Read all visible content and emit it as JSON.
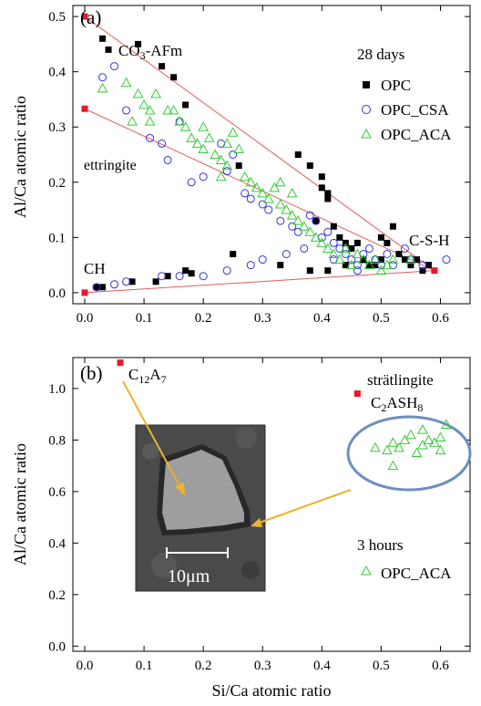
{
  "chart_data": [
    {
      "type": "scatter",
      "panel_label": "(a)",
      "xlabel": "",
      "ylabel": "Al/Ca atomic ratio",
      "xlim": [
        -0.02,
        0.65
      ],
      "ylim": [
        -0.02,
        0.52
      ],
      "x_ticks": [
        "0.0",
        "0.1",
        "0.2",
        "0.3",
        "0.4",
        "0.5",
        "0.6"
      ],
      "y_ticks": [
        "0.0",
        "0.1",
        "0.2",
        "0.3",
        "0.4",
        "0.5"
      ],
      "legend_title": "28 days",
      "legend_position": "top-right",
      "annotations": {
        "co3_afm": {
          "base": "CO",
          "sub": "3",
          "rest": "-AFm"
        },
        "ettringite": "ettringite",
        "csh": "C-S-H",
        "ch": "CH"
      },
      "reference_points": [
        [
          0.0,
          0.5
        ],
        [
          0.0,
          0.333
        ],
        [
          0.0,
          0.0
        ],
        [
          0.59,
          0.04
        ]
      ],
      "reference_lines": [
        {
          "from": [
            0.0,
            0.5
          ],
          "to": [
            0.59,
            0.04
          ]
        },
        {
          "from": [
            0.0,
            0.333
          ],
          "to": [
            0.59,
            0.04
          ]
        },
        {
          "from": [
            0.0,
            0.0
          ],
          "to": [
            0.59,
            0.04
          ]
        }
      ],
      "series": [
        {
          "name": "OPC",
          "marker": "square-filled",
          "color": "#000000",
          "points": [
            [
              0.03,
              0.46
            ],
            [
              0.04,
              0.44
            ],
            [
              0.09,
              0.45
            ],
            [
              0.13,
              0.41
            ],
            [
              0.15,
              0.39
            ],
            [
              0.17,
              0.34
            ],
            [
              0.26,
              0.23
            ],
            [
              0.36,
              0.25
            ],
            [
              0.38,
              0.23
            ],
            [
              0.4,
              0.21
            ],
            [
              0.4,
              0.19
            ],
            [
              0.41,
              0.18
            ],
            [
              0.41,
              0.17
            ],
            [
              0.39,
              0.13
            ],
            [
              0.42,
              0.12
            ],
            [
              0.43,
              0.1
            ],
            [
              0.44,
              0.09
            ],
            [
              0.45,
              0.08
            ],
            [
              0.46,
              0.09
            ],
            [
              0.5,
              0.1
            ],
            [
              0.51,
              0.09
            ],
            [
              0.53,
              0.07
            ],
            [
              0.54,
              0.06
            ],
            [
              0.55,
              0.05
            ],
            [
              0.57,
              0.04
            ],
            [
              0.52,
              0.12
            ],
            [
              0.47,
              0.06
            ],
            [
              0.49,
              0.05
            ],
            [
              0.02,
              0.01
            ],
            [
              0.03,
              0.01
            ],
            [
              0.08,
              0.02
            ],
            [
              0.12,
              0.02
            ],
            [
              0.14,
              0.03
            ],
            [
              0.17,
              0.04
            ],
            [
              0.18,
              0.035
            ],
            [
              0.25,
              0.07
            ],
            [
              0.33,
              0.05
            ],
            [
              0.38,
              0.04
            ],
            [
              0.41,
              0.04
            ],
            [
              0.44,
              0.05
            ],
            [
              0.48,
              0.05
            ],
            [
              0.5,
              0.06
            ],
            [
              0.56,
              0.06
            ],
            [
              0.58,
              0.05
            ]
          ]
        },
        {
          "name": "OPC_CSA",
          "marker": "circle-open",
          "color": "#3333dd",
          "points": [
            [
              0.03,
              0.39
            ],
            [
              0.05,
              0.41
            ],
            [
              0.07,
              0.33
            ],
            [
              0.11,
              0.28
            ],
            [
              0.13,
              0.27
            ],
            [
              0.14,
              0.24
            ],
            [
              0.16,
              0.31
            ],
            [
              0.2,
              0.21
            ],
            [
              0.23,
              0.27
            ],
            [
              0.24,
              0.22
            ],
            [
              0.28,
              0.17
            ],
            [
              0.3,
              0.16
            ],
            [
              0.31,
              0.15
            ],
            [
              0.33,
              0.13
            ],
            [
              0.35,
              0.12
            ],
            [
              0.36,
              0.11
            ],
            [
              0.38,
              0.14
            ],
            [
              0.39,
              0.13
            ],
            [
              0.4,
              0.1
            ],
            [
              0.41,
              0.11
            ],
            [
              0.42,
              0.09
            ],
            [
              0.43,
              0.08
            ],
            [
              0.44,
              0.07
            ],
            [
              0.45,
              0.06
            ],
            [
              0.46,
              0.05
            ],
            [
              0.47,
              0.07
            ],
            [
              0.48,
              0.08
            ],
            [
              0.49,
              0.06
            ],
            [
              0.5,
              0.05
            ],
            [
              0.51,
              0.07
            ],
            [
              0.52,
              0.05
            ],
            [
              0.55,
              0.06
            ],
            [
              0.57,
              0.05
            ],
            [
              0.61,
              0.06
            ],
            [
              0.02,
              0.01
            ],
            [
              0.05,
              0.015
            ],
            [
              0.07,
              0.02
            ],
            [
              0.13,
              0.03
            ],
            [
              0.16,
              0.03
            ],
            [
              0.2,
              0.03
            ],
            [
              0.24,
              0.04
            ],
            [
              0.28,
              0.05
            ],
            [
              0.3,
              0.06
            ],
            [
              0.34,
              0.07
            ],
            [
              0.37,
              0.08
            ],
            [
              0.42,
              0.06
            ],
            [
              0.46,
              0.04
            ],
            [
              0.54,
              0.08
            ],
            [
              0.25,
              0.25
            ],
            [
              0.27,
              0.18
            ],
            [
              0.18,
              0.2
            ]
          ]
        },
        {
          "name": "OPC_ACA",
          "marker": "triangle-open",
          "color": "#33cc33",
          "points": [
            [
              0.03,
              0.37
            ],
            [
              0.07,
              0.38
            ],
            [
              0.09,
              0.36
            ],
            [
              0.1,
              0.34
            ],
            [
              0.11,
              0.31
            ],
            [
              0.12,
              0.36
            ],
            [
              0.14,
              0.33
            ],
            [
              0.15,
              0.33
            ],
            [
              0.16,
              0.31
            ],
            [
              0.17,
              0.3
            ],
            [
              0.18,
              0.28
            ],
            [
              0.19,
              0.27
            ],
            [
              0.2,
              0.26
            ],
            [
              0.21,
              0.28
            ],
            [
              0.22,
              0.25
            ],
            [
              0.23,
              0.24
            ],
            [
              0.24,
              0.23
            ],
            [
              0.25,
              0.29
            ],
            [
              0.26,
              0.26
            ],
            [
              0.27,
              0.21
            ],
            [
              0.28,
              0.2
            ],
            [
              0.29,
              0.19
            ],
            [
              0.3,
              0.18
            ],
            [
              0.31,
              0.17
            ],
            [
              0.32,
              0.19
            ],
            [
              0.33,
              0.16
            ],
            [
              0.34,
              0.15
            ],
            [
              0.35,
              0.14
            ],
            [
              0.36,
              0.13
            ],
            [
              0.37,
              0.12
            ],
            [
              0.38,
              0.11
            ],
            [
              0.39,
              0.1
            ],
            [
              0.4,
              0.09
            ],
            [
              0.41,
              0.08
            ],
            [
              0.42,
              0.07
            ],
            [
              0.43,
              0.06
            ],
            [
              0.44,
              0.08
            ],
            [
              0.45,
              0.05
            ],
            [
              0.46,
              0.07
            ],
            [
              0.47,
              0.06
            ],
            [
              0.48,
              0.05
            ],
            [
              0.49,
              0.06
            ],
            [
              0.5,
              0.04
            ],
            [
              0.51,
              0.05
            ],
            [
              0.52,
              0.06
            ],
            [
              0.55,
              0.06
            ],
            [
              0.2,
              0.3
            ],
            [
              0.24,
              0.27
            ],
            [
              0.33,
              0.2
            ],
            [
              0.35,
              0.18
            ],
            [
              0.23,
              0.21
            ],
            [
              0.11,
              0.33
            ],
            [
              0.08,
              0.31
            ]
          ]
        }
      ]
    },
    {
      "type": "scatter",
      "panel_label": "(b)",
      "xlabel": "Si/Ca atomic ratio",
      "ylabel": "Al/Ca atomic ratio",
      "xlim": [
        -0.02,
        0.65
      ],
      "ylim": [
        -0.02,
        1.12
      ],
      "x_ticks": [
        "0.0",
        "0.1",
        "0.2",
        "0.3",
        "0.4",
        "0.5",
        "0.6"
      ],
      "y_ticks": [
        "0.0",
        "0.2",
        "0.4",
        "0.6",
        "0.8",
        "1.0"
      ],
      "legend_title": "3 hours",
      "legend_position": "lower-right",
      "annotations": {
        "c12a7": {
          "base": "C",
          "sub": "12",
          "mid": "A",
          "sub2": "7"
        },
        "stratlingite": "strätlingite",
        "c2ash8": {
          "base": "C",
          "sub": "2",
          "rest": "ASH",
          "sub2": "8"
        },
        "scale_bar": "10μm"
      },
      "reference_points": [
        [
          0.06,
          1.1
        ],
        [
          0.46,
          0.98
        ]
      ],
      "series": [
        {
          "name": "OPC_ACA",
          "marker": "triangle-open",
          "color": "#33cc33",
          "points": [
            [
              0.49,
              0.77
            ],
            [
              0.51,
              0.76
            ],
            [
              0.52,
              0.79
            ],
            [
              0.53,
              0.77
            ],
            [
              0.55,
              0.82
            ],
            [
              0.56,
              0.75
            ],
            [
              0.57,
              0.78
            ],
            [
              0.58,
              0.8
            ],
            [
              0.59,
              0.79
            ],
            [
              0.6,
              0.76
            ],
            [
              0.61,
              0.86
            ],
            [
              0.57,
              0.84
            ],
            [
              0.52,
              0.7
            ],
            [
              0.6,
              0.81
            ],
            [
              0.54,
              0.8
            ]
          ]
        }
      ]
    }
  ]
}
